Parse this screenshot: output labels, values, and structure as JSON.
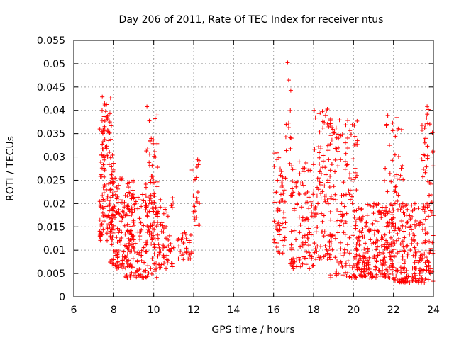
{
  "chart_data": {
    "type": "scatter",
    "title": "Day 206 of 2011, Rate Of TEC Index for receiver ntus",
    "xlabel": "GPS time / hours",
    "ylabel": "ROTI / TECUs",
    "xlim": [
      6,
      24
    ],
    "ylim": [
      0,
      0.055
    ],
    "grid": true,
    "marker": "plus",
    "series_color": "#ff0000",
    "xticks": [
      6,
      8,
      10,
      12,
      14,
      16,
      18,
      20,
      22,
      24
    ],
    "xtick_labels": [
      "6",
      "8",
      "10",
      "12",
      "14",
      "16",
      "18",
      "20",
      "22",
      "24"
    ],
    "yticks": [
      0,
      0.005,
      0.01,
      0.015,
      0.02,
      0.025,
      0.03,
      0.035,
      0.04,
      0.045,
      0.05,
      0.055
    ],
    "ytick_labels": [
      "0",
      "0.005",
      "0.01",
      "0.015",
      "0.02",
      "0.025",
      "0.03",
      "0.035",
      "0.04",
      "0.045",
      "0.05",
      "0.055"
    ],
    "density_profile": [
      {
        "x_range": [
          7.3,
          8.0
        ],
        "y_range": [
          0.012,
          0.036
        ],
        "density": 120
      },
      {
        "x_range": [
          7.4,
          7.9
        ],
        "y_range": [
          0.035,
          0.043
        ],
        "density": 25
      },
      {
        "x_range": [
          7.8,
          9.0
        ],
        "y_range": [
          0.006,
          0.026
        ],
        "density": 140
      },
      {
        "x_range": [
          8.5,
          10.2
        ],
        "y_range": [
          0.004,
          0.022
        ],
        "density": 170
      },
      {
        "x_range": [
          9.6,
          10.2
        ],
        "y_range": [
          0.018,
          0.041
        ],
        "density": 45
      },
      {
        "x_range": [
          10.2,
          11.0
        ],
        "y_range": [
          0.006,
          0.023
        ],
        "density": 60
      },
      {
        "x_range": [
          11.2,
          11.9
        ],
        "y_range": [
          0.008,
          0.014
        ],
        "density": 30
      },
      {
        "x_range": [
          11.9,
          12.3
        ],
        "y_range": [
          0.015,
          0.03
        ],
        "density": 25
      },
      {
        "x_range": [
          16.0,
          16.6
        ],
        "y_range": [
          0.009,
          0.031
        ],
        "density": 55
      },
      {
        "x_range": [
          16.6,
          16.9
        ],
        "y_range": [
          0.03,
          0.051
        ],
        "density": 12
      },
      {
        "x_range": [
          16.8,
          18.0
        ],
        "y_range": [
          0.006,
          0.029
        ],
        "density": 110
      },
      {
        "x_range": [
          18.0,
          19.0
        ],
        "y_range": [
          0.008,
          0.041
        ],
        "density": 110
      },
      {
        "x_range": [
          18.8,
          20.2
        ],
        "y_range": [
          0.004,
          0.038
        ],
        "density": 150
      },
      {
        "x_range": [
          20.0,
          22.0
        ],
        "y_range": [
          0.004,
          0.02
        ],
        "density": 230
      },
      {
        "x_range": [
          21.5,
          22.5
        ],
        "y_range": [
          0.015,
          0.041
        ],
        "density": 50
      },
      {
        "x_range": [
          22.0,
          24.0
        ],
        "y_range": [
          0.003,
          0.02
        ],
        "density": 220
      },
      {
        "x_range": [
          23.4,
          24.0
        ],
        "y_range": [
          0.018,
          0.041
        ],
        "density": 40
      }
    ]
  }
}
